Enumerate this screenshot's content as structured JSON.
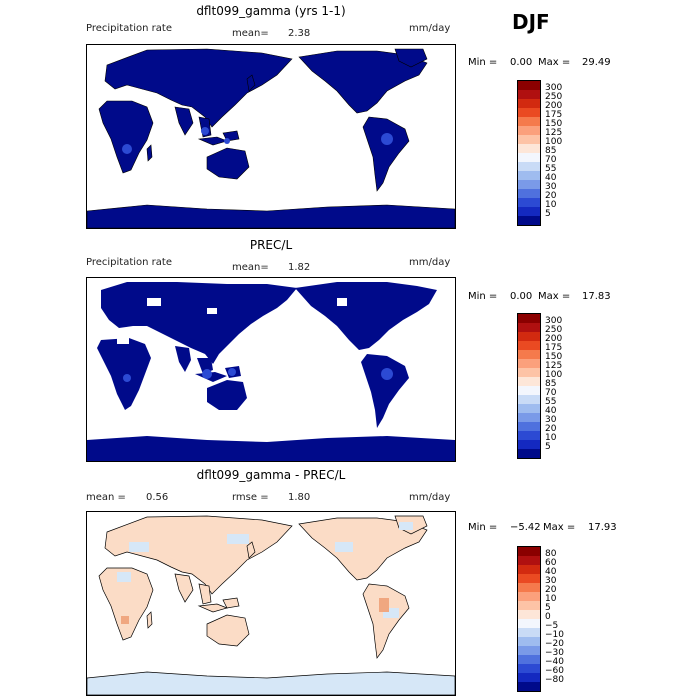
{
  "header": {
    "season": "DJF"
  },
  "colors": {
    "ocean": "#ffffff",
    "land_prec_dark": "#000a8a",
    "land_prec_mid": "#1e3fb5",
    "diff_pos": "#fbdcc6",
    "diff_neg": "#d6e7f7",
    "diff_pos_strong": "#f0a780"
  },
  "panels": [
    {
      "title": "dflt099_gamma (yrs 1-1)",
      "left_label": "Precipitation rate",
      "mean_label": "mean=",
      "mean_value": "2.38",
      "units": "mm/day",
      "min_label": "Min =",
      "min_value": "0.00",
      "max_label": "Max =",
      "max_value": "29.49"
    },
    {
      "title": "PREC/L",
      "left_label": "Precipitation rate",
      "mean_label": "mean=",
      "mean_value": "1.82",
      "units": "mm/day",
      "min_label": "Min =",
      "min_value": "0.00",
      "max_label": "Max =",
      "max_value": "17.83"
    },
    {
      "title": "dflt099_gamma - PREC/L",
      "mean_label": "mean =",
      "mean_value": "0.56",
      "rmse_label": "rmse =",
      "rmse_value": "1.80",
      "units": "mm/day",
      "min_label": "Min =",
      "min_value": "−5.42",
      "max_label": "Max =",
      "max_value": "17.93"
    }
  ],
  "colorbars": {
    "precip": {
      "labels": [
        "300",
        "250",
        "200",
        "175",
        "150",
        "125",
        "100",
        "85",
        "70",
        "55",
        "40",
        "30",
        "20",
        "10",
        "5"
      ],
      "colors": [
        "#8b0000",
        "#b01010",
        "#d22a10",
        "#ea4a22",
        "#f57a4c",
        "#fba07c",
        "#fdc3a6",
        "#fde6d8",
        "#f3f6fd",
        "#c9dbf6",
        "#9fbcef",
        "#7a9ae8",
        "#4f71de",
        "#2c4ad3",
        "#1429c0",
        "#000a8a"
      ]
    },
    "diff": {
      "labels": [
        "80",
        "60",
        "40",
        "30",
        "20",
        "10",
        "5",
        "0",
        "−5",
        "−10",
        "−20",
        "−30",
        "−40",
        "−60",
        "−80"
      ],
      "colors": [
        "#8b0000",
        "#b01010",
        "#d22a10",
        "#ea4a22",
        "#f57a4c",
        "#fba07c",
        "#fdc3a6",
        "#fde6d8",
        "#f3f6fd",
        "#c9dbf6",
        "#9fbcef",
        "#7a9ae8",
        "#4f71de",
        "#2c4ad3",
        "#1429c0",
        "#000a8a"
      ]
    }
  }
}
